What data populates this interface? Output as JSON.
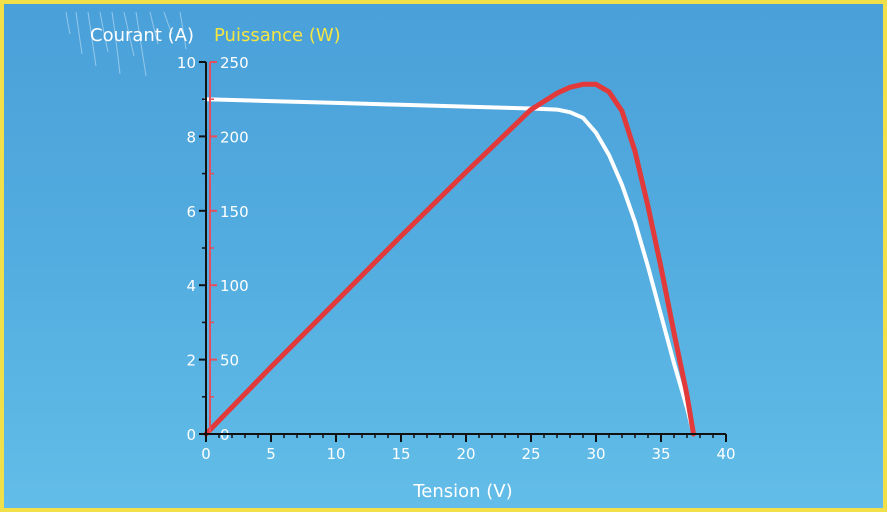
{
  "colors": {
    "current": "#ffffff",
    "power": "#e23a3a",
    "power_axis": "#e84d5b",
    "power_label": "#f4e542",
    "axis": "#111111",
    "text": "#ffffff",
    "frame_border": "#f1e04a",
    "background_top": "#4aa0d9",
    "background_bottom": "#63bde8"
  },
  "chart_data": {
    "type": "line",
    "title": "",
    "xlabel": "Tension (V)",
    "ylabel": "Courant (A)",
    "y2label": "Puissance (W)",
    "xlim": [
      0,
      40
    ],
    "ylim": [
      0,
      10
    ],
    "y2lim": [
      0,
      250
    ],
    "x_ticks": [
      "0",
      "5",
      "10",
      "15",
      "20",
      "25",
      "30",
      "35",
      "40"
    ],
    "y_ticks": [
      "0",
      "2",
      "4",
      "6",
      "8",
      "10"
    ],
    "y2_ticks": [
      "0",
      "50",
      "100",
      "150",
      "200",
      "250"
    ],
    "grid": false,
    "series": [
      {
        "axis": "left",
        "color": "#ffffff",
        "x": [
          0,
          5,
          10,
          15,
          20,
          25,
          27,
          28,
          29,
          30,
          31,
          32,
          33,
          34,
          35,
          36,
          37,
          37.5
        ],
        "y": [
          9.0,
          8.95,
          8.9,
          8.85,
          8.8,
          8.75,
          8.72,
          8.65,
          8.5,
          8.1,
          7.5,
          6.7,
          5.7,
          4.5,
          3.2,
          1.9,
          0.7,
          0
        ]
      },
      {
        "axis": "right",
        "color": "#e23a3a",
        "x": [
          0,
          5,
          10,
          15,
          20,
          25,
          27,
          28,
          29,
          30,
          31,
          32,
          33,
          34,
          35,
          36,
          37,
          37.5
        ],
        "y": [
          0,
          45,
          89,
          133,
          176,
          218,
          229,
          233,
          235,
          235,
          230,
          217,
          190,
          153,
          112,
          68,
          26,
          0
        ]
      }
    ]
  }
}
